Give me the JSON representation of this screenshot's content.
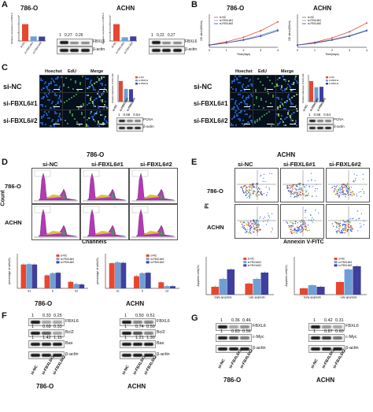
{
  "labels": [
    "A",
    "B",
    "C",
    "D",
    "E",
    "F",
    "G"
  ],
  "colors": {
    "nc": "#e8462f",
    "fb1": "#6e9fd4",
    "fb2": "#3f3f9e"
  },
  "legend": [
    "si-NC",
    "si-FBXL6#1",
    "si-FBXL6#2"
  ],
  "panelA": {
    "left": {
      "title": "786-O",
      "ylabel": "Relative expression of FBXL6",
      "values": [
        1,
        0.27,
        0.26
      ],
      "blot_vals": [
        "1",
        "0.27",
        "0.26"
      ],
      "blot_labels": [
        "FBXL6",
        "β-actin"
      ]
    },
    "right": {
      "title": "ACHN",
      "ylabel": "Relative expression of FBXL6",
      "values": [
        1,
        0.22,
        0.27
      ],
      "blot_vals": [
        "1",
        "0.22",
        "0.27"
      ],
      "blot_labels": [
        "FBXL6",
        "β-actin"
      ]
    }
  },
  "panelB": {
    "left": {
      "title": "786-O",
      "xlabel": "Time(days)",
      "ylabel": "OD value(450nm)"
    },
    "right": {
      "title": "ACHN",
      "xlabel": "Time(days)",
      "ylabel": "OD value(450nm)"
    }
  },
  "panelC": {
    "left": {
      "cols": [
        "Hoechst",
        "EdU",
        "Merge"
      ],
      "rows": [
        "si-NC",
        "si-FBXL6#1",
        "si-FBXL6#2"
      ],
      "bars": [
        1,
        0.62,
        0.6
      ],
      "ylabel": "Relative expression of EdU cells",
      "blot_vals": [
        "1",
        "0.58",
        "0.54"
      ],
      "blot_labels": [
        "PCNA",
        "β-actin"
      ],
      "caption": "786-O"
    },
    "right": {
      "cols": [
        "Hoechst",
        "EdU",
        "Merge"
      ],
      "rows": [
        "si-NC",
        "si-FBXL6#1",
        "si-FBXL6#2"
      ],
      "bars": [
        1,
        0.7,
        0.72
      ],
      "ylabel": "Relative expression of EdU cells",
      "blot_vals": [
        "1",
        "0.58",
        "0.54"
      ],
      "blot_labels": [
        "PCNA",
        "β-actin"
      ],
      "caption": "ACHN"
    }
  },
  "panelD": {
    "cols": [
      "si-NC",
      "si-FBXL6#1",
      "si-FBXL6#2"
    ],
    "rows": [
      "786-O",
      "ACHN"
    ],
    "ylabel": "Count",
    "xlabel": "Channels",
    "charts": [
      {
        "title": "786-O",
        "ylabel": "percentage of cells(%)",
        "categories": [
          "G1",
          "S",
          "G2"
        ],
        "series": [
          {
            "name": "si-NC",
            "values": [
              55,
              30,
              15
            ]
          },
          {
            "name": "si-FBXL6#1",
            "values": [
              56,
              35,
              10
            ]
          },
          {
            "name": "si-FBXL6#2",
            "values": [
              55,
              36,
              9
            ]
          }
        ]
      },
      {
        "title": "ACHN",
        "ylabel": "percentage of cells(%)",
        "categories": [
          "G1",
          "S",
          "G2"
        ],
        "series": [
          {
            "name": "si-NC",
            "values": [
              58,
              28,
              14
            ]
          },
          {
            "name": "si-FBXL6#1",
            "values": [
              60,
              35,
              5
            ]
          },
          {
            "name": "si-FBXL6#2",
            "values": [
              59,
              36,
              5
            ]
          }
        ]
      }
    ]
  },
  "panelE": {
    "cols": [
      "si-NC",
      "si-FBXL6#1",
      "si-FBXL6#2"
    ],
    "rows": [
      "786-O",
      "ACHN"
    ],
    "ylabel": "PI",
    "xlabel": "Annexin V-FITC",
    "charts": [
      {
        "title": "786-O",
        "ylabel": "Apoptotic cells(%)",
        "categories": [
          "Early apoptosis",
          "Late apoptosis"
        ],
        "series": [
          {
            "name": "si-NC",
            "values": [
              2.5,
              3.5
            ]
          },
          {
            "name": "si-FBXL6#1",
            "values": [
              5,
              5
            ]
          },
          {
            "name": "si-FBXL6#2",
            "values": [
              8,
              7
            ]
          }
        ]
      },
      {
        "title": "ACHN",
        "ylabel": "Apoptotic cells(%)",
        "categories": [
          "Early apoptosis",
          "Late apoptosis"
        ],
        "series": [
          {
            "name": "si-NC",
            "values": [
              2,
              4
            ]
          },
          {
            "name": "si-FBXL6#1",
            "values": [
              3,
              8
            ]
          },
          {
            "name": "si-FBXL6#2",
            "values": [
              2.5,
              9
            ]
          }
        ]
      }
    ]
  },
  "panelF": {
    "left": {
      "caption": "786-O",
      "rows": [
        {
          "label": "FBXL6",
          "vals": [
            "1",
            "0.33",
            "0.25"
          ]
        },
        {
          "label": "Bcl2",
          "vals": [
            "1",
            "0.68",
            "0.33"
          ]
        },
        {
          "label": "Bax",
          "vals": [
            "1",
            "1.42",
            "1.15"
          ]
        },
        {
          "label": "β-actin",
          "vals": []
        }
      ],
      "lanes": [
        "si-NC",
        "si-FBXL6#1",
        "si-FBXL6#2"
      ]
    },
    "right": {
      "caption": "ACHN",
      "rows": [
        {
          "label": "FBXL6",
          "vals": [
            "1",
            "0.50",
            "0.51"
          ]
        },
        {
          "label": "Bcl2",
          "vals": [
            "1",
            "0.74",
            "0.50"
          ]
        },
        {
          "label": "Bax",
          "vals": [
            "1",
            "1.21",
            "1.30"
          ]
        },
        {
          "label": "β-actin",
          "vals": []
        }
      ],
      "lanes": [
        "si-NC",
        "si-FBXL6#1",
        "si-FBXL6#2"
      ]
    }
  },
  "panelG": {
    "left": {
      "caption": "786-O",
      "rows": [
        {
          "label": "FBXL6",
          "vals": [
            "1",
            "0.36",
            "0.46"
          ]
        },
        {
          "label": "c-Myc",
          "vals": [
            "1",
            "0.83",
            "0.56"
          ]
        },
        {
          "label": "β-actin",
          "vals": []
        }
      ],
      "lanes": [
        "si-NC",
        "si-FBXL6#1",
        "si-FBXL6#2"
      ]
    },
    "right": {
      "caption": "ACHN",
      "rows": [
        {
          "label": "FBXL6",
          "vals": [
            "1",
            "0.42",
            "0.31"
          ]
        },
        {
          "label": "c-Myc",
          "vals": [
            "1",
            "0.87",
            "0.60"
          ]
        },
        {
          "label": "β-actin",
          "vals": []
        }
      ],
      "lanes": [
        "si-NC",
        "si-FBXL6#1",
        "si-FBXL6#2"
      ]
    }
  },
  "chart_data": [
    {
      "type": "bar",
      "title": "786-O",
      "categories": [
        "si-NC",
        "si-FBXL6#1",
        "si-FBXL6#2"
      ],
      "values": [
        1,
        0.27,
        0.26
      ],
      "ylabel": "Relative expression of FBXL6",
      "ylim": [
        0,
        1.5
      ]
    },
    {
      "type": "bar",
      "title": "ACHN",
      "categories": [
        "si-NC",
        "si-FBXL6#1",
        "si-FBXL6#2"
      ],
      "values": [
        1,
        0.22,
        0.27
      ],
      "ylabel": "Relative expression of FBXL6",
      "ylim": [
        0,
        1.5
      ]
    },
    {
      "type": "line",
      "title": "786-O",
      "x": [
        0,
        1,
        2,
        3,
        4
      ],
      "series": [
        {
          "name": "si-NC",
          "values": [
            0.2,
            0.5,
            0.9,
            1.5,
            2.3
          ]
        },
        {
          "name": "si-FBXL6#1",
          "values": [
            0.2,
            0.4,
            0.7,
            1.1,
            1.6
          ]
        },
        {
          "name": "si-FBXL6#2",
          "values": [
            0.2,
            0.4,
            0.65,
            1.0,
            1.5
          ]
        }
      ],
      "xlabel": "Time(days)",
      "ylabel": "OD value(450nm)",
      "ylim": [
        0,
        3
      ]
    },
    {
      "type": "line",
      "title": "ACHN",
      "x": [
        0,
        1,
        2,
        3,
        4
      ],
      "series": [
        {
          "name": "si-NC",
          "values": [
            0.2,
            0.45,
            0.85,
            1.4,
            2.2
          ]
        },
        {
          "name": "si-FBXL6#1",
          "values": [
            0.2,
            0.4,
            0.7,
            1.05,
            1.55
          ]
        },
        {
          "name": "si-FBXL6#2",
          "values": [
            0.2,
            0.38,
            0.65,
            1.0,
            1.5
          ]
        }
      ],
      "xlabel": "Time(days)",
      "ylabel": "OD value(450nm)",
      "ylim": [
        0,
        3
      ]
    }
  ]
}
